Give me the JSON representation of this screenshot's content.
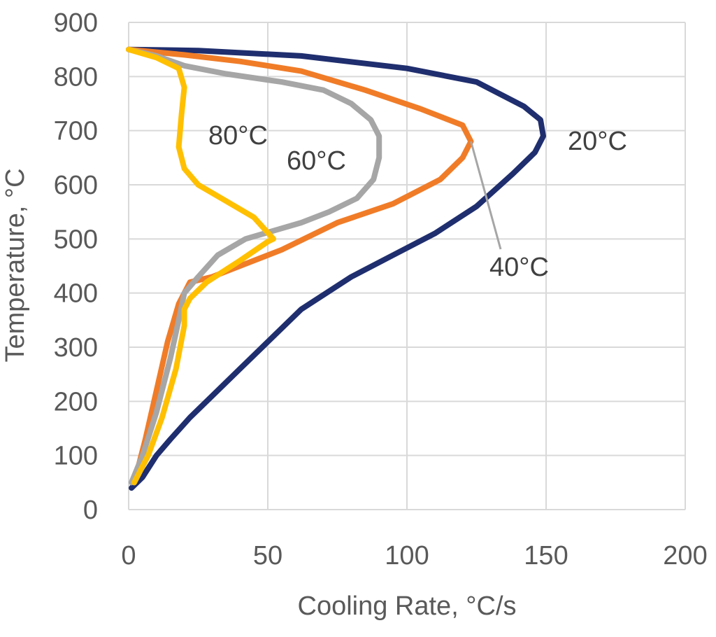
{
  "chart_data": {
    "type": "line",
    "title": "",
    "xlabel": "Cooling Rate, °C/s",
    "ylabel": "Temperature, °C",
    "xlim": [
      0,
      200
    ],
    "ylim": [
      0,
      900
    ],
    "xticks": [
      0,
      50,
      100,
      150,
      200
    ],
    "yticks": [
      0,
      100,
      200,
      300,
      400,
      500,
      600,
      700,
      800,
      900
    ],
    "grid": true,
    "legend": "none",
    "series": [
      {
        "name": "20°C",
        "color": "#1f2e6e",
        "x": [
          0,
          25,
          62,
          100,
          125,
          142,
          148,
          149,
          146,
          138,
          125,
          110,
          95,
          80,
          62,
          50,
          40,
          30,
          22,
          15,
          10,
          5,
          1
        ],
        "y": [
          850,
          848,
          838,
          815,
          790,
          745,
          720,
          690,
          660,
          620,
          560,
          510,
          470,
          430,
          370,
          310,
          260,
          210,
          170,
          130,
          100,
          60,
          40
        ]
      },
      {
        "name": "40°C",
        "color": "#f07c28",
        "x": [
          0,
          20,
          40,
          62,
          85,
          105,
          120,
          123,
          120,
          112,
          95,
          75,
          55,
          40,
          30,
          22,
          18,
          14,
          10,
          6,
          2
        ],
        "y": [
          850,
          840,
          828,
          810,
          775,
          740,
          710,
          680,
          650,
          610,
          565,
          530,
          480,
          450,
          430,
          420,
          380,
          310,
          220,
          130,
          50
        ]
      },
      {
        "name": "60°C",
        "color": "#a6a6a6",
        "x": [
          0,
          10,
          20,
          35,
          55,
          70,
          80,
          87,
          90,
          90,
          88,
          82,
          72,
          62,
          52,
          42,
          32,
          25,
          20,
          18,
          15,
          10,
          5,
          1
        ],
        "y": [
          850,
          838,
          820,
          805,
          790,
          775,
          750,
          720,
          690,
          650,
          610,
          575,
          550,
          530,
          515,
          500,
          470,
          430,
          400,
          350,
          280,
          180,
          100,
          50
        ]
      },
      {
        "name": "80°C",
        "color": "#ffc000",
        "x": [
          0,
          10,
          18,
          20,
          19,
          18,
          20,
          25,
          35,
          45,
          52,
          50,
          40,
          28,
          22,
          20,
          20,
          17,
          12,
          7,
          2
        ],
        "y": [
          850,
          835,
          815,
          780,
          730,
          670,
          630,
          600,
          570,
          540,
          500,
          495,
          460,
          420,
          390,
          370,
          340,
          260,
          170,
          100,
          50
        ]
      }
    ],
    "annotations": [
      {
        "text": "20°C",
        "series": "20°C"
      },
      {
        "text": "40°C",
        "series": "40°C"
      },
      {
        "text": "60°C",
        "series": "60°C"
      },
      {
        "text": "80°C",
        "series": "80°C"
      }
    ]
  }
}
